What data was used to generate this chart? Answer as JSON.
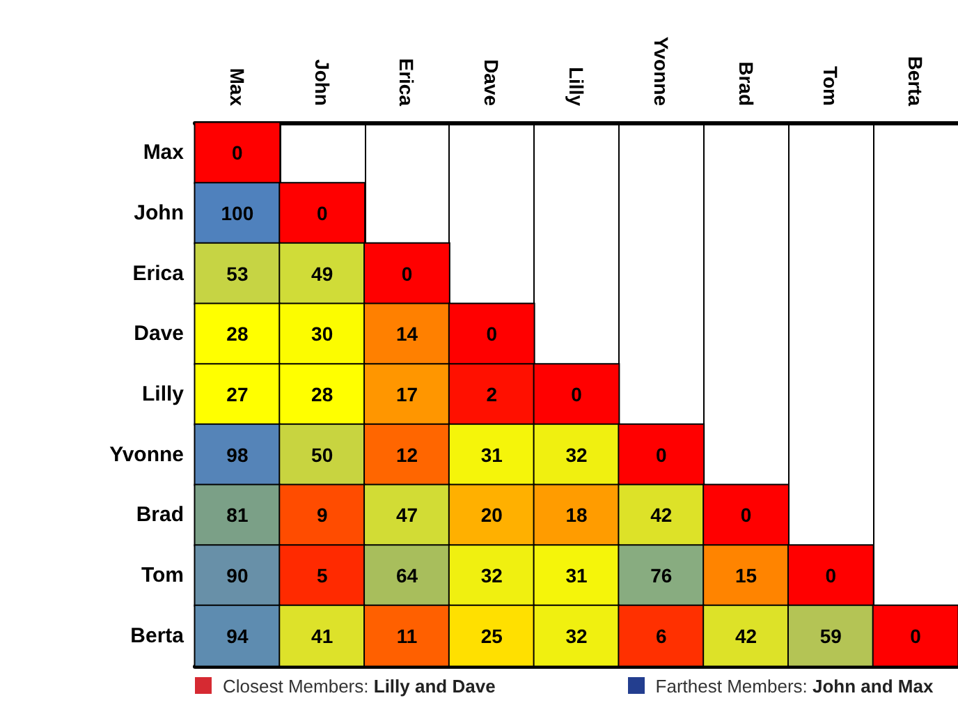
{
  "chart_data": {
    "type": "heatmap",
    "categories": [
      "Max",
      "John",
      "Erica",
      "Dave",
      "Lilly",
      "Yvonne",
      "Brad",
      "Tom",
      "Berta"
    ],
    "y_categories": [
      "Max",
      "John",
      "Erica",
      "Dave",
      "Lilly",
      "Yvonne",
      "Brad",
      "Tom",
      "Berta"
    ],
    "cells": [
      [
        0,
        null,
        null,
        null,
        null,
        null,
        null,
        null,
        null
      ],
      [
        100,
        0,
        null,
        null,
        null,
        null,
        null,
        null,
        null
      ],
      [
        53,
        49,
        0,
        null,
        null,
        null,
        null,
        null,
        null
      ],
      [
        28,
        30,
        14,
        0,
        null,
        null,
        null,
        null,
        null
      ],
      [
        27,
        28,
        17,
        2,
        0,
        null,
        null,
        null,
        null
      ],
      [
        98,
        50,
        12,
        31,
        32,
        0,
        null,
        null,
        null
      ],
      [
        81,
        9,
        47,
        20,
        18,
        42,
        0,
        null,
        null
      ],
      [
        90,
        5,
        64,
        32,
        31,
        76,
        15,
        0,
        null
      ],
      [
        94,
        41,
        11,
        25,
        32,
        6,
        42,
        59,
        0
      ]
    ],
    "colors": [
      [
        "#ff0000",
        null,
        null,
        null,
        null,
        null,
        null,
        null,
        null
      ],
      [
        "#4f81bd",
        "#ff0000",
        null,
        null,
        null,
        null,
        null,
        null,
        null
      ],
      [
        "#c6d444",
        "#d0dc38",
        "#ff0000",
        null,
        null,
        null,
        null,
        null,
        null
      ],
      [
        "#ffff00",
        "#fcfc00",
        "#ff8000",
        "#ff0000",
        null,
        null,
        null,
        null,
        null
      ],
      [
        "#ffff00",
        "#ffff00",
        "#ff9600",
        "#ff1000",
        "#ff0000",
        null,
        null,
        null,
        null
      ],
      [
        "#5584b8",
        "#c8d440",
        "#ff6600",
        "#f5f50a",
        "#f0f010",
        "#ff0000",
        null,
        null,
        null
      ],
      [
        "#7ba087",
        "#ff4c00",
        "#d2dc35",
        "#ffb000",
        "#ff9c00",
        "#dde228",
        "#ff0000",
        null,
        null
      ],
      [
        "#6890a8",
        "#ff2a00",
        "#a8be5c",
        "#f0f010",
        "#f5f50a",
        "#88ac80",
        "#ff8400",
        "#ff0000",
        null
      ],
      [
        "#5e8cb0",
        "#dde22a",
        "#ff6000",
        "#ffe000",
        "#f0f010",
        "#ff3000",
        "#dde228",
        "#b4c455",
        "#ff0000"
      ]
    ],
    "data_labels": true,
    "annotations": [
      "Closest Members: Lilly and Dave",
      "Farthest Members: John and Max"
    ]
  }
}
